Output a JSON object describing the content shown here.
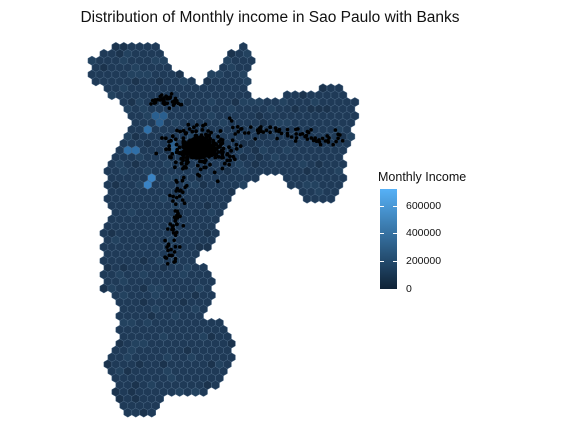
{
  "title": "Distribution of Monthly income in Sao Paulo with Banks",
  "legend": {
    "title": "Monthly Income",
    "ticks": [
      {
        "label": "600000",
        "value": 600000
      },
      {
        "label": "400000",
        "value": 400000
      },
      {
        "label": "200000",
        "value": 200000
      },
      {
        "label": "0",
        "value": 0
      }
    ],
    "min": 0,
    "max": 720000,
    "color_low": "#0f2236",
    "color_high": "#56b1f7"
  },
  "map": {
    "hex_fill_base": "#1f3a57",
    "hex_stroke": "#4a6784",
    "bank_point_color": "#000000",
    "highlight_colors": [
      "#2f6fa8",
      "#3a83c4",
      "#2a5f8f"
    ]
  }
}
